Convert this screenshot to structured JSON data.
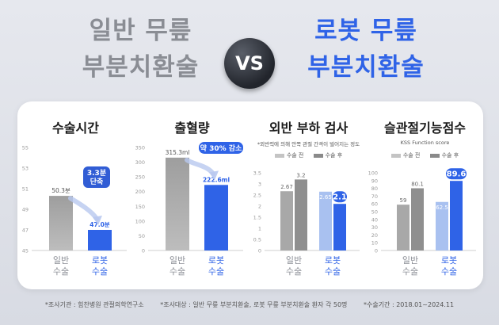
{
  "header": {
    "left_lines": [
      "일반 무릎",
      "부분치환술"
    ],
    "vs": "VS",
    "right_lines": [
      "로봇 무릎",
      "부분치환술"
    ]
  },
  "colors": {
    "general": "#a8a8a8",
    "general_dark": "#8a8d94",
    "robot": "#2f63e7",
    "robot_light": "#a9c1f0"
  },
  "footer": [
    "*조사기관 : 힘찬병원 관절의학연구소",
    "*조사대상 : 일반 무릎 부분치환술, 로봇 무릎 부분치환술 환자 각 50명",
    "*수술기간 : 2018.01~2024.11"
  ],
  "chart_data": [
    {
      "type": "bar",
      "title": "수술시간",
      "categories": [
        "일반\n수술",
        "로봇\n수술"
      ],
      "values": [
        50.3,
        47.0
      ],
      "value_labels": [
        "50.3분",
        "47.0분"
      ],
      "yticks": [
        "45",
        "47",
        "49",
        "51",
        "53",
        "55"
      ],
      "ylim": [
        45,
        55
      ],
      "callout": "3.3분\n단축"
    },
    {
      "type": "bar",
      "title": "출혈량",
      "categories": [
        "일반\n수술",
        "로봇\n수술"
      ],
      "values": [
        315.3,
        222.6
      ],
      "value_labels": [
        "315.3ml",
        "222.6ml"
      ],
      "yticks": [
        "0",
        "50",
        "100",
        "150",
        "200",
        "250",
        "300",
        "350"
      ],
      "ylim": [
        0,
        350
      ],
      "callout": "약 30% 감소"
    },
    {
      "type": "bar",
      "title": "외반 부하 검사",
      "subtitle": "*외반력에 의해 안쪽 관절 간격이 벌어지는 정도",
      "legend": [
        "수술 전",
        "수술 후"
      ],
      "categories": [
        "일반\n수술",
        "로봇\n수술"
      ],
      "series": [
        {
          "name": "수술 전",
          "values": [
            2.67,
            2.65
          ],
          "labels": [
            "2.67",
            "2.65"
          ]
        },
        {
          "name": "수술 후",
          "values": [
            3.2,
            2.1
          ],
          "labels": [
            "3.2",
            "2.1"
          ]
        }
      ],
      "yticks": [
        "0",
        "0.5",
        "1",
        "1.5",
        "2",
        "2.5",
        "3",
        "3.5"
      ],
      "ylim": [
        0,
        3.5
      ]
    },
    {
      "type": "bar",
      "title": "슬관절기능점수",
      "subtitle": "KSS Function score",
      "legend": [
        "수술 전",
        "수술 후"
      ],
      "categories": [
        "일반\n수술",
        "로봇\n수술"
      ],
      "series": [
        {
          "name": "수술 전",
          "values": [
            59,
            62.5
          ],
          "labels": [
            "59",
            "62.5"
          ]
        },
        {
          "name": "수술 후",
          "values": [
            80.1,
            89.6
          ],
          "labels": [
            "80.1",
            "89.6"
          ]
        }
      ],
      "yticks": [
        "0",
        "10",
        "20",
        "30",
        "40",
        "50",
        "60",
        "70",
        "80",
        "90",
        "100"
      ],
      "ylim": [
        0,
        100
      ]
    }
  ]
}
